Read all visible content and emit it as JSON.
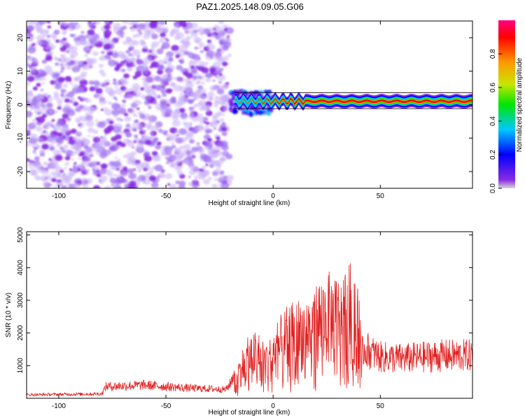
{
  "figure": {
    "title": "PAZ1.2025.148.09.05.G06"
  },
  "chart_data": [
    {
      "type": "heatmap",
      "xlabel": "Height of straight line (km)",
      "ylabel": "Frequency (Hz)",
      "xlim": [
        -115,
        93
      ],
      "ylim": [
        -25,
        25
      ],
      "xticks": [
        -100,
        -50,
        0,
        50
      ],
      "yticks": [
        -20,
        -10,
        0,
        10,
        20
      ],
      "colorbar": {
        "label": "Normalized spectral amplitude",
        "range": [
          0.0,
          1.0
        ],
        "ticks": [
          0.0,
          0.2,
          0.4,
          0.6,
          0.8
        ],
        "colormap": [
          "#d6d6d6",
          "#8a2be2",
          "#0000ff",
          "#00c8ff",
          "#00e600",
          "#c8e600",
          "#ff9900",
          "#ff0000",
          "#ff0080"
        ]
      },
      "regions": [
        {
          "name": "noise",
          "x_range": [
            -115,
            -20
          ],
          "freq_range": [
            -25,
            25
          ],
          "amplitude": 0.05
        },
        {
          "name": "transition",
          "x_range": [
            -20,
            0
          ],
          "freq_range": [
            -3,
            4
          ],
          "amplitude": 0.6
        },
        {
          "name": "carrier",
          "x_range": [
            0,
            93
          ],
          "freq_center": 1.0,
          "amplitude": 1.0
        }
      ],
      "grid": false
    },
    {
      "type": "line",
      "xlabel": "Height of straight line (km)",
      "ylabel": "SNR (10 * v/v)",
      "xlim": [
        -115,
        93
      ],
      "ylim": [
        0,
        5100
      ],
      "xticks": [
        -100,
        -50,
        0,
        50
      ],
      "yticks": [
        1000,
        2000,
        3000,
        4000,
        5000
      ],
      "color": "#e02020",
      "envelope": {
        "x": [
          -115,
          -80,
          -78,
          -60,
          -40,
          -22,
          -20,
          -18,
          -14,
          -10,
          -6,
          -2,
          2,
          6,
          10,
          14,
          18,
          22,
          26,
          30,
          34,
          38,
          40,
          42,
          50,
          60,
          70,
          80,
          93
        ],
        "y": [
          120,
          150,
          400,
          450,
          350,
          300,
          500,
          900,
          1600,
          2100,
          2000,
          1800,
          2400,
          2800,
          3000,
          3200,
          3300,
          3800,
          3900,
          3800,
          4100,
          4300,
          3500,
          1700,
          1400,
          1350,
          1400,
          1450,
          1450
        ]
      },
      "grid": false
    }
  ]
}
